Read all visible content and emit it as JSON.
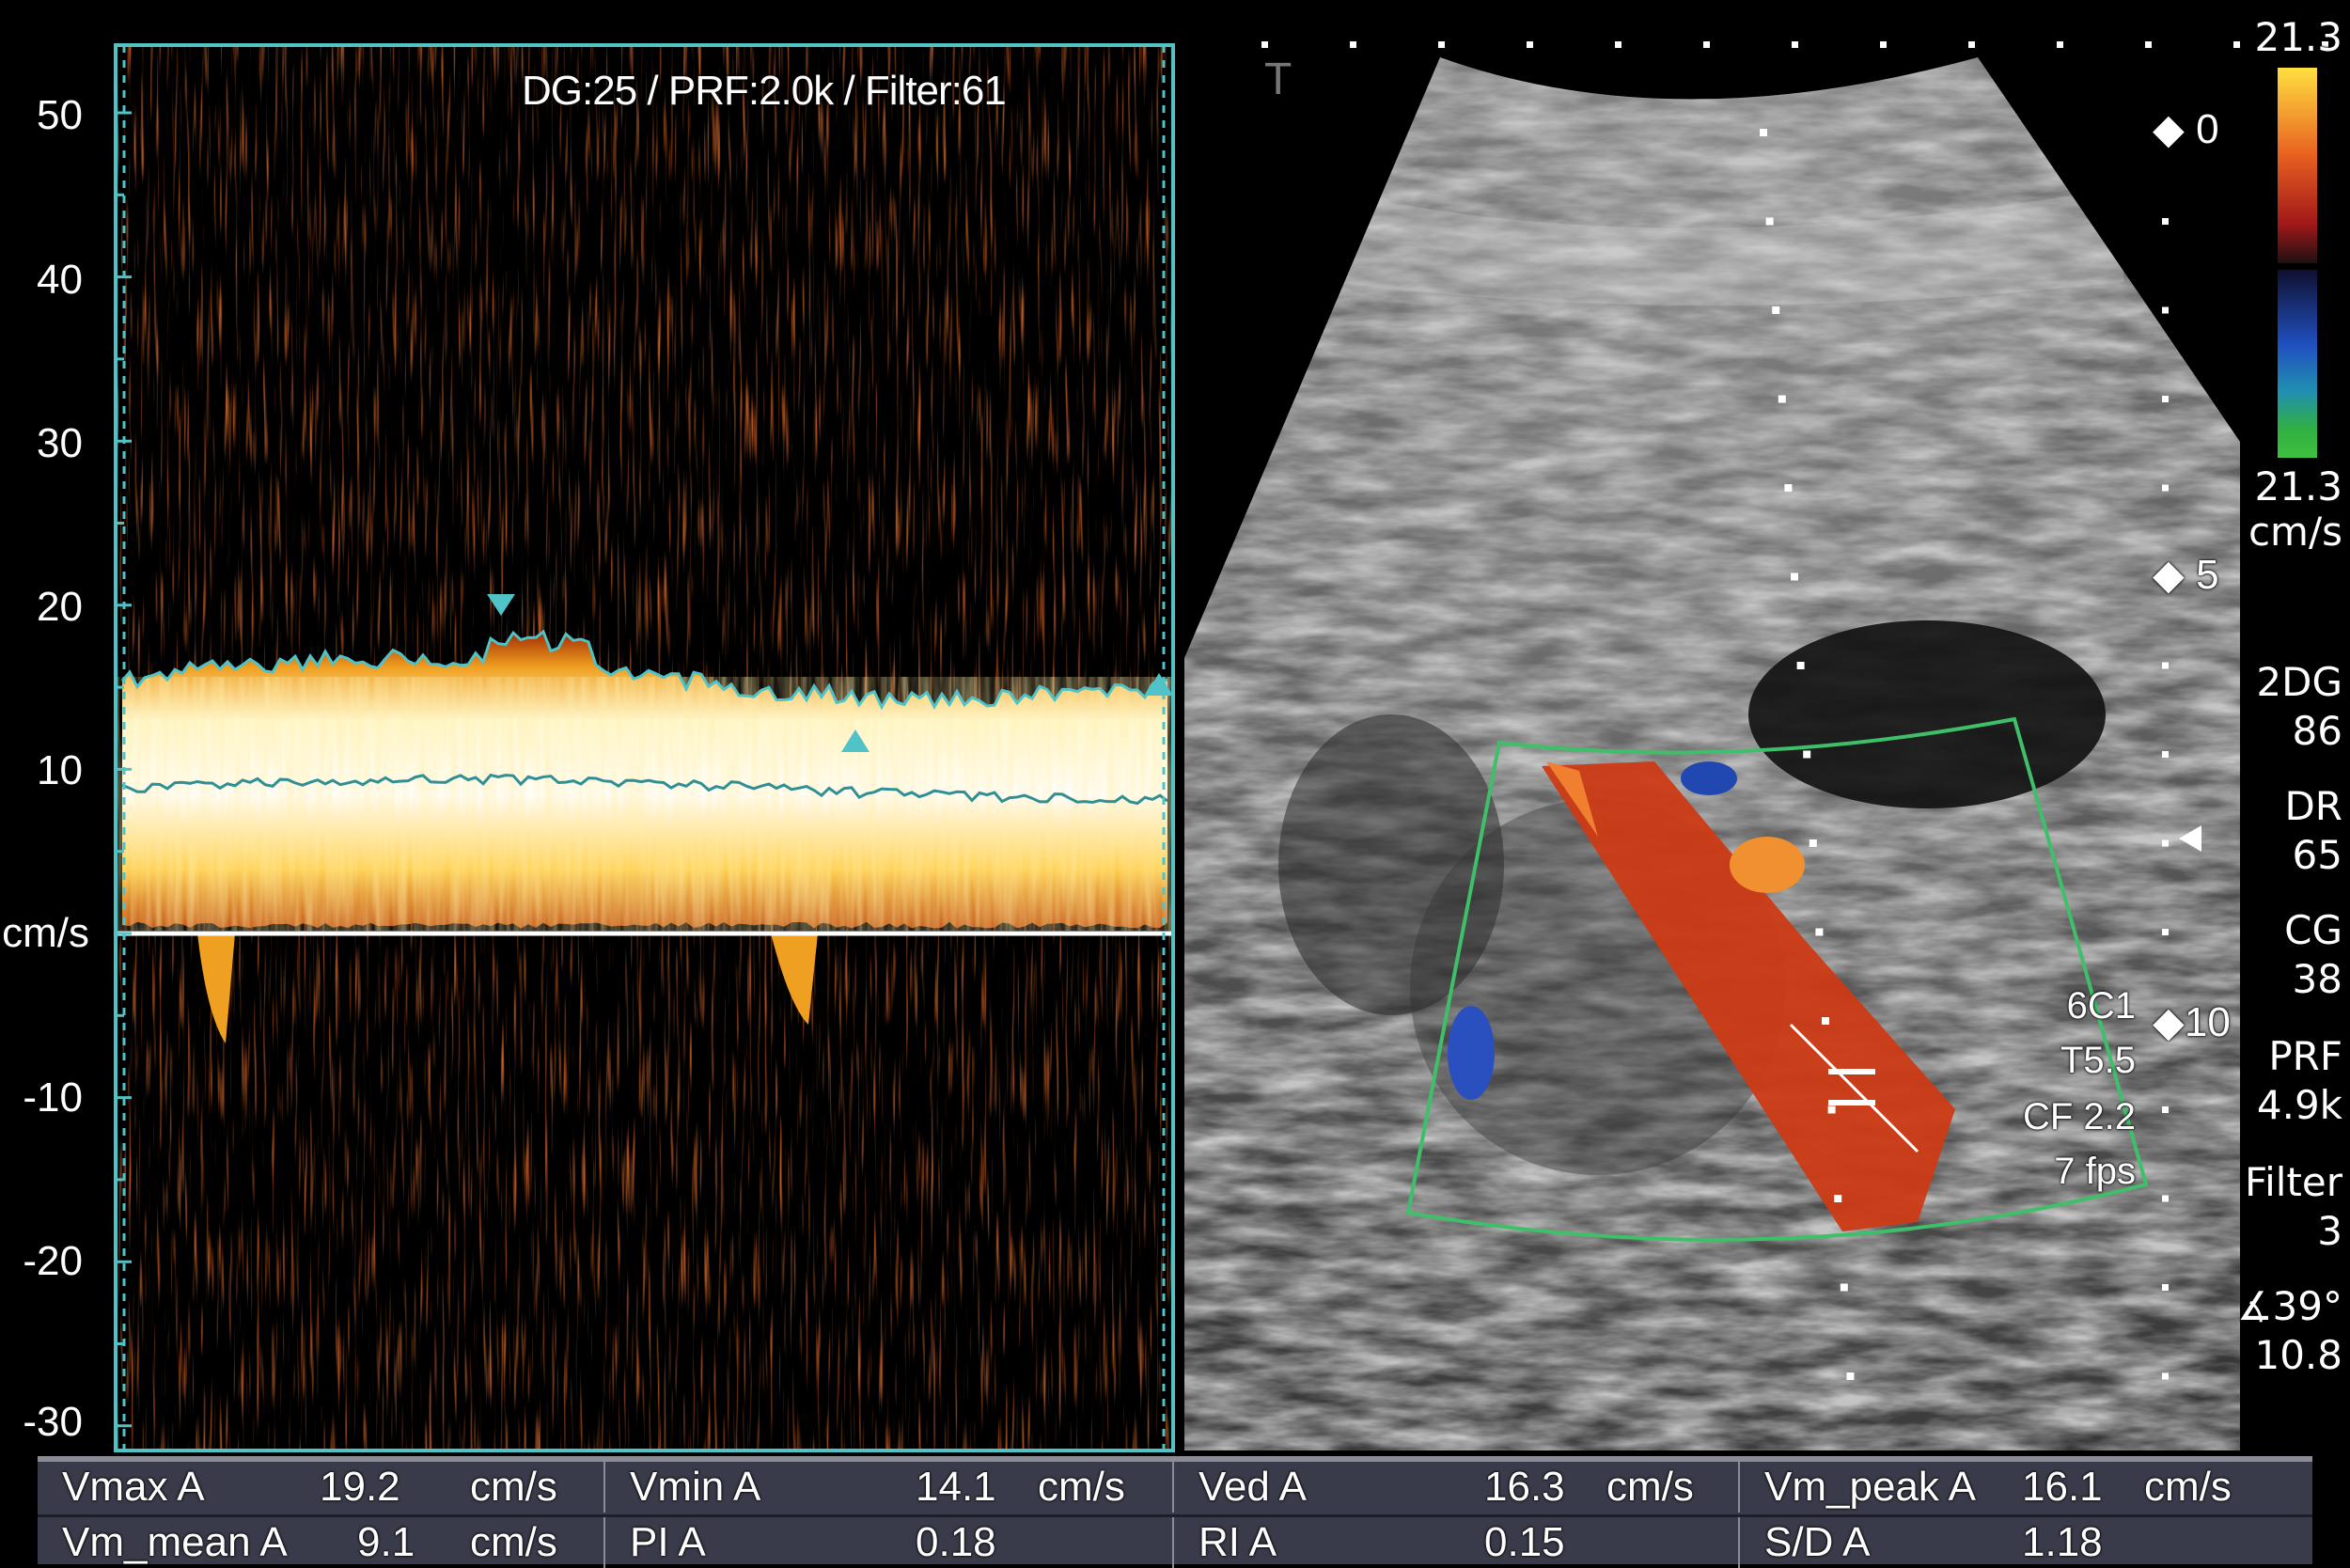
{
  "spectral": {
    "header": "DG:25 /   PRF:2.0k   / Filter:61",
    "unit": "cm/s",
    "ticks": [
      "50",
      "40",
      "30",
      "20",
      "10",
      "-10",
      "-20",
      "-30"
    ]
  },
  "color_bar": {
    "top": "21.3",
    "bottom": "21.3",
    "unit": "cm/s"
  },
  "params": [
    {
      "label": "2DG",
      "value": "86"
    },
    {
      "label": "DR",
      "value": "65"
    },
    {
      "label": "CG",
      "value": "38"
    },
    {
      "label": "PRF",
      "value": "4.9k"
    },
    {
      "label": "Filter",
      "value": "3"
    }
  ],
  "angle": {
    "value": "39°",
    "sub": "10.8",
    "icon": "angle-icon"
  },
  "probe": {
    "model": "6C1",
    "tis": "T5.5",
    "cf": "CF 2.2",
    "fps": "7 fps"
  },
  "depth_markers": [
    "0",
    "5",
    "10"
  ],
  "measurements": [
    [
      {
        "label": "Vmax  A",
        "value": "19.2",
        "unit": "cm/s"
      },
      {
        "label": "Vmin  A",
        "value": "14.1",
        "unit": "cm/s"
      },
      {
        "label": "Ved  A",
        "value": "16.3",
        "unit": "cm/s"
      },
      {
        "label": "Vm_peak  A",
        "value": "16.1",
        "unit": "cm/s"
      }
    ],
    [
      {
        "label": "Vm_mean  A",
        "value": "9.1",
        "unit": "cm/s"
      },
      {
        "label": "PI  A",
        "value": "0.18",
        "unit": ""
      },
      {
        "label": "RI  A",
        "value": "0.15",
        "unit": ""
      },
      {
        "label": "S/D  A",
        "value": "1.18",
        "unit": ""
      }
    ]
  ],
  "colors": {
    "cursor": "#4fc3c8",
    "doppler_box": "#3fbf6a",
    "flow_toward": "#d0401a",
    "flow_away": "#2a4fc0",
    "table_bg": "#3a3b4a"
  }
}
